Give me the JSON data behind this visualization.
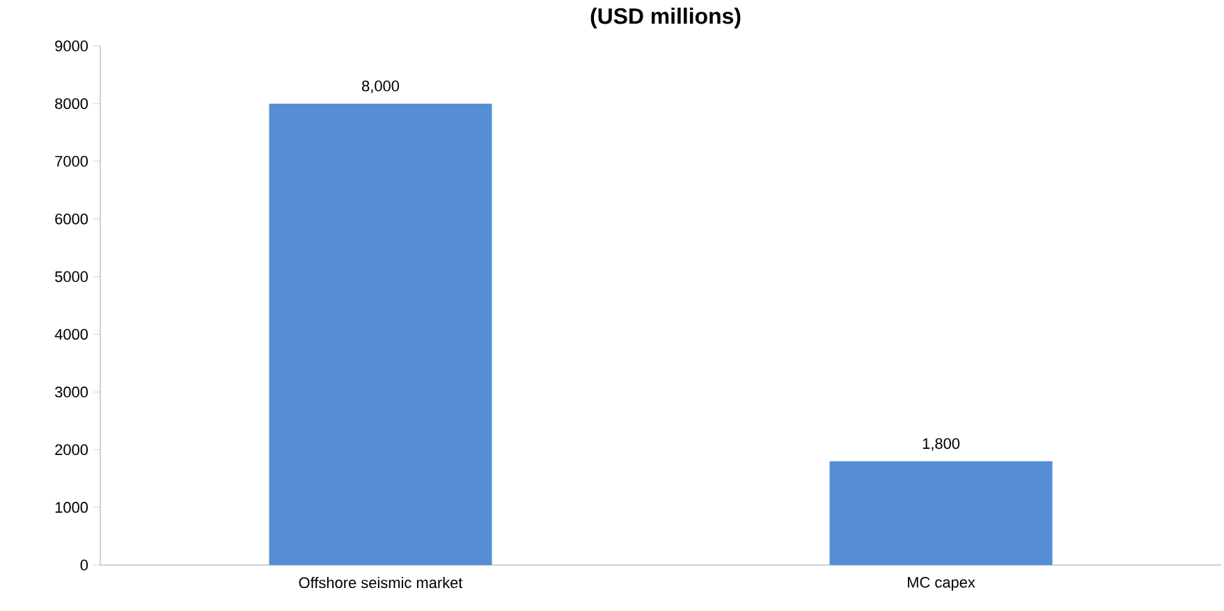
{
  "chart_data": {
    "type": "bar",
    "title": "(USD millions)",
    "categories": [
      "Offshore seismic market",
      "MC capex"
    ],
    "values": [
      8000,
      1800
    ],
    "value_labels": [
      "8,000",
      "1,800"
    ],
    "color": "#558ed5",
    "ylim": [
      0,
      9000
    ],
    "yticks": [
      0,
      1000,
      2000,
      3000,
      4000,
      5000,
      6000,
      7000,
      8000,
      9000
    ],
    "tick_labels": "xy"
  }
}
